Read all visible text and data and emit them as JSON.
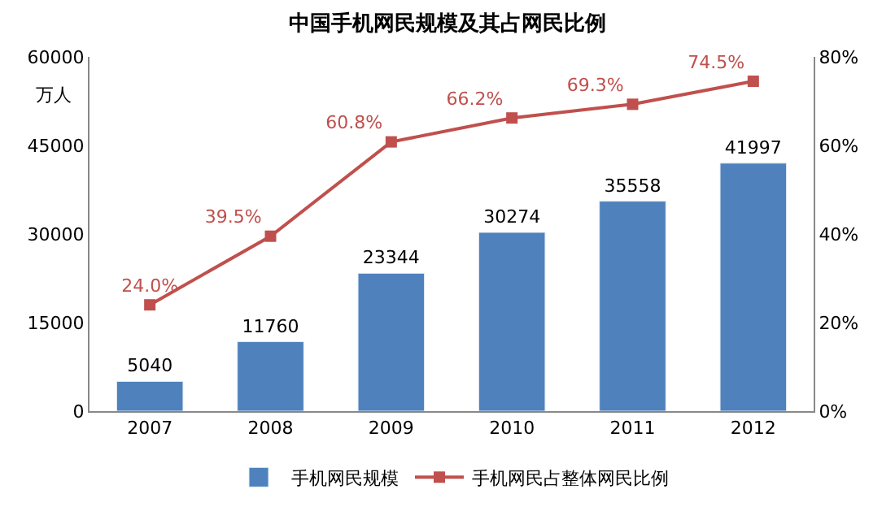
{
  "chart_data": {
    "type": "bar",
    "title": "中国手机网民规模及其占网民比例",
    "ylabel": "万人",
    "categories": [
      "2007",
      "2008",
      "2009",
      "2010",
      "2011",
      "2012"
    ],
    "series": [
      {
        "name": "手机网民规模",
        "color": "#4f81bd",
        "values": [
          5040,
          11760,
          23344,
          30274,
          35558,
          41997
        ],
        "value_labels": [
          "5040",
          "11760",
          "23344",
          "30274",
          "35558",
          "41997"
        ]
      },
      {
        "name": "手机网民占整体网民比例",
        "type": "line",
        "axis": "y2",
        "color": "#c0504d",
        "marker": "square",
        "values": [
          24.0,
          39.5,
          60.8,
          66.2,
          69.3,
          74.5
        ],
        "value_labels": [
          "24.0%",
          "39.5%",
          "60.8%",
          "66.2%",
          "69.3%",
          "74.5%"
        ]
      }
    ],
    "ylim": [
      0,
      60000
    ],
    "yticks": [
      0,
      15000,
      30000,
      45000,
      60000
    ],
    "y2lim": [
      0,
      80
    ],
    "y2ticks": [
      {
        "value": 0,
        "label": "0%"
      },
      {
        "value": 20,
        "label": "20%"
      },
      {
        "value": 40,
        "label": "40%"
      },
      {
        "value": 60,
        "label": "60%"
      },
      {
        "value": 80,
        "label": "80%"
      }
    ],
    "legend": "bottom"
  }
}
